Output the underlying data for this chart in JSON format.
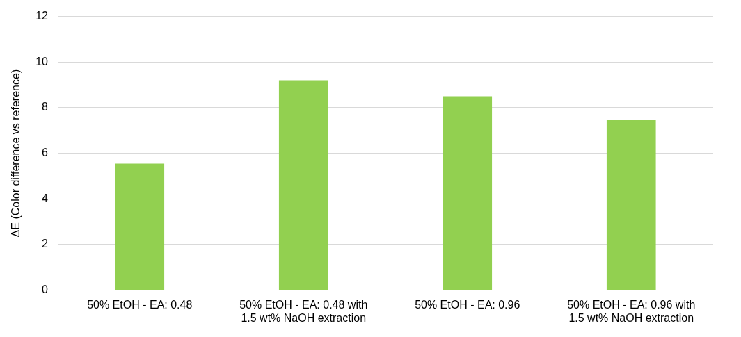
{
  "chart_data": {
    "type": "bar",
    "ylabel": "ΔE (Color difference vs reference)",
    "categories": [
      "50% EtOH - EA: 0.48",
      "50% EtOH - EA: 0.48 with 1.5 wt% NaOH extraction",
      "50% EtOH - EA: 0.96",
      "50% EtOH - EA: 0.96 with 1.5 wt% NaOH extraction"
    ],
    "values": [
      5.55,
      9.2,
      8.5,
      7.45
    ],
    "color": "#92d050",
    "ylim": [
      0,
      12
    ],
    "yticks": [
      0,
      2,
      4,
      6,
      8,
      10,
      12
    ],
    "grid": "y",
    "legend": false
  }
}
